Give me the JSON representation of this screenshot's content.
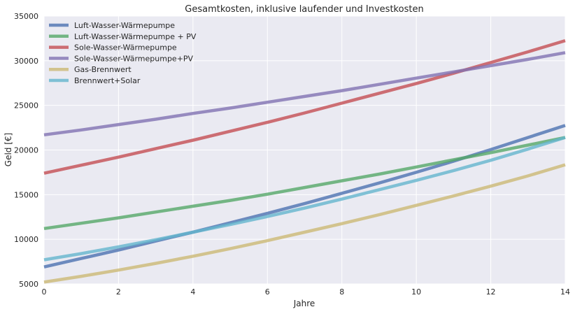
{
  "chart_data": {
    "type": "line",
    "title": "Gesamtkosten, inklusive laufender und Investkosten",
    "xlabel": "Jahre",
    "ylabel": "Geld [€]",
    "xlim": [
      0,
      14
    ],
    "ylim": [
      5000,
      35000
    ],
    "xticks": [
      0,
      2,
      4,
      6,
      8,
      10,
      12,
      14
    ],
    "yticks": [
      5000,
      10000,
      15000,
      20000,
      25000,
      30000,
      35000
    ],
    "x": [
      0,
      1,
      2,
      3,
      4,
      5,
      6,
      7,
      8,
      9,
      10,
      11,
      12,
      13,
      14
    ],
    "grid": true,
    "background": "#EAEAF2",
    "legend_position": "top-left",
    "series": [
      {
        "name": "Luft-Wasser-Wärmepumpe",
        "color": "#4C72B0",
        "values": [
          6900,
          7850,
          8800,
          9800,
          10800,
          11850,
          12900,
          14000,
          15150,
          16300,
          17500,
          18750,
          20050,
          21400,
          22750
        ]
      },
      {
        "name": "Luft-Wasser-Wärmepumpe + PV",
        "color": "#55A868",
        "values": [
          11200,
          11800,
          12400,
          13050,
          13700,
          14350,
          15050,
          15800,
          16550,
          17300,
          18100,
          18900,
          19700,
          20550,
          21400
        ]
      },
      {
        "name": "Sole-Wasser-Wärmepumpe",
        "color": "#C44E52",
        "values": [
          17400,
          18300,
          19200,
          20150,
          21100,
          22100,
          23100,
          24150,
          25250,
          26350,
          27450,
          28600,
          29800,
          31000,
          32250
        ]
      },
      {
        "name": "Sole-Wasser-Wärmepumpe+PV",
        "color": "#8172B2",
        "values": [
          21700,
          22250,
          22850,
          23450,
          24100,
          24700,
          25350,
          26000,
          26650,
          27350,
          28050,
          28750,
          29450,
          30150,
          30900
        ]
      },
      {
        "name": "Gas-Brennwert",
        "color": "#CCB974",
        "values": [
          5200,
          5850,
          6550,
          7300,
          8100,
          8950,
          9850,
          10800,
          11750,
          12750,
          13800,
          14850,
          15950,
          17100,
          18350
        ]
      },
      {
        "name": "Brennwert+Solar",
        "color": "#64B5CD",
        "values": [
          7700,
          8400,
          9150,
          9950,
          10800,
          11650,
          12550,
          13500,
          14500,
          15550,
          16600,
          17700,
          18850,
          20100,
          21400
        ]
      }
    ]
  }
}
